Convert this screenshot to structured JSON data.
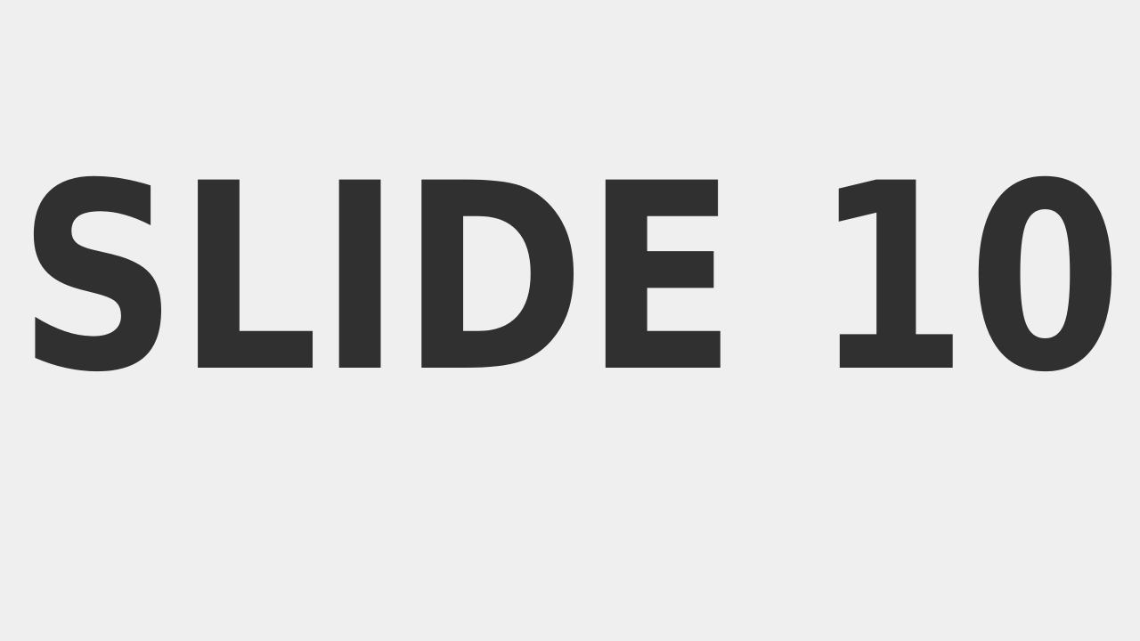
{
  "slide": {
    "title": "SLIDE 10",
    "colors": {
      "background": "#efefef",
      "text": "#303030"
    }
  }
}
